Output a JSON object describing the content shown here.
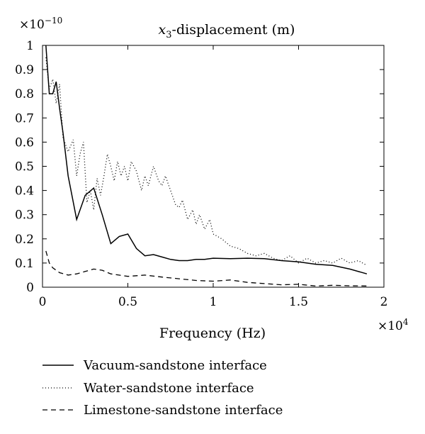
{
  "chart_data": {
    "type": "line",
    "title": "x3-displacement (m)",
    "title_parts": {
      "main": "x",
      "sub": "3",
      "rest": "-displacement (m)"
    },
    "xlabel": "Frequency (Hz)",
    "ylabel": "",
    "x_multiplier": "×10",
    "x_multiplier_exp": "4",
    "y_multiplier": "×10",
    "y_multiplier_exp": "−10",
    "xlim": [
      0,
      2
    ],
    "ylim": [
      0,
      1
    ],
    "x_ticks": [
      0,
      0.5,
      1,
      1.5,
      2
    ],
    "x_tick_labels": [
      "0",
      "0.5",
      "1",
      "1.5",
      "2"
    ],
    "y_ticks": [
      0,
      0.1,
      0.2,
      0.3,
      0.4,
      0.5,
      0.6,
      0.7,
      0.8,
      0.9,
      1
    ],
    "y_tick_labels": [
      "0",
      "0.1",
      "0.2",
      "0.3",
      "0.4",
      "0.5",
      "0.6",
      "0.7",
      "0.8",
      "0.9",
      "1"
    ],
    "grid": false,
    "legend_position": "bottom-left, below axes",
    "series": [
      {
        "name": "Vacuum-sandstone interface",
        "style": "solid",
        "color": "#000000",
        "x": [
          0.02,
          0.04,
          0.06,
          0.08,
          0.1,
          0.12,
          0.15,
          0.2,
          0.25,
          0.3,
          0.35,
          0.4,
          0.45,
          0.5,
          0.55,
          0.6,
          0.65,
          0.7,
          0.75,
          0.8,
          0.85,
          0.9,
          0.95,
          1.0,
          1.1,
          1.2,
          1.3,
          1.4,
          1.5,
          1.6,
          1.7,
          1.8,
          1.9
        ],
        "y": [
          1.0,
          0.8,
          0.8,
          0.85,
          0.74,
          0.64,
          0.46,
          0.28,
          0.38,
          0.41,
          0.3,
          0.18,
          0.21,
          0.22,
          0.16,
          0.13,
          0.135,
          0.125,
          0.115,
          0.11,
          0.11,
          0.115,
          0.115,
          0.12,
          0.118,
          0.12,
          0.118,
          0.11,
          0.105,
          0.095,
          0.09,
          0.075,
          0.055
        ]
      },
      {
        "name": "Water-sandstone interface",
        "style": "dotted",
        "color": "#000000",
        "x": [
          0.02,
          0.04,
          0.06,
          0.08,
          0.1,
          0.12,
          0.15,
          0.18,
          0.2,
          0.22,
          0.24,
          0.26,
          0.28,
          0.3,
          0.32,
          0.34,
          0.36,
          0.38,
          0.4,
          0.42,
          0.44,
          0.46,
          0.48,
          0.5,
          0.52,
          0.55,
          0.58,
          0.6,
          0.62,
          0.65,
          0.68,
          0.7,
          0.72,
          0.75,
          0.78,
          0.8,
          0.82,
          0.85,
          0.88,
          0.9,
          0.92,
          0.95,
          0.98,
          1.0,
          1.05,
          1.1,
          1.15,
          1.2,
          1.25,
          1.3,
          1.35,
          1.4,
          1.45,
          1.5,
          1.55,
          1.6,
          1.65,
          1.7,
          1.75,
          1.8,
          1.85,
          1.9
        ],
        "y": [
          0.95,
          0.82,
          0.86,
          0.76,
          0.84,
          0.62,
          0.56,
          0.61,
          0.46,
          0.55,
          0.6,
          0.35,
          0.4,
          0.32,
          0.45,
          0.38,
          0.46,
          0.55,
          0.5,
          0.44,
          0.52,
          0.46,
          0.5,
          0.44,
          0.52,
          0.48,
          0.4,
          0.46,
          0.42,
          0.5,
          0.44,
          0.42,
          0.46,
          0.4,
          0.34,
          0.33,
          0.36,
          0.28,
          0.32,
          0.26,
          0.3,
          0.24,
          0.28,
          0.22,
          0.2,
          0.17,
          0.16,
          0.14,
          0.13,
          0.14,
          0.12,
          0.11,
          0.13,
          0.1,
          0.12,
          0.1,
          0.11,
          0.1,
          0.12,
          0.1,
          0.11,
          0.09
        ]
      },
      {
        "name": "Limestone-sandstone interface",
        "style": "dashed",
        "color": "#000000",
        "x": [
          0.02,
          0.04,
          0.06,
          0.1,
          0.15,
          0.2,
          0.25,
          0.3,
          0.35,
          0.4,
          0.5,
          0.6,
          0.7,
          0.8,
          0.9,
          1.0,
          1.1,
          1.2,
          1.3,
          1.4,
          1.5,
          1.6,
          1.7,
          1.8,
          1.9
        ],
        "y": [
          0.15,
          0.1,
          0.08,
          0.06,
          0.05,
          0.055,
          0.065,
          0.075,
          0.07,
          0.055,
          0.045,
          0.05,
          0.042,
          0.035,
          0.028,
          0.025,
          0.03,
          0.02,
          0.015,
          0.01,
          0.012,
          0.005,
          0.008,
          0.006,
          0.005
        ]
      }
    ]
  }
}
